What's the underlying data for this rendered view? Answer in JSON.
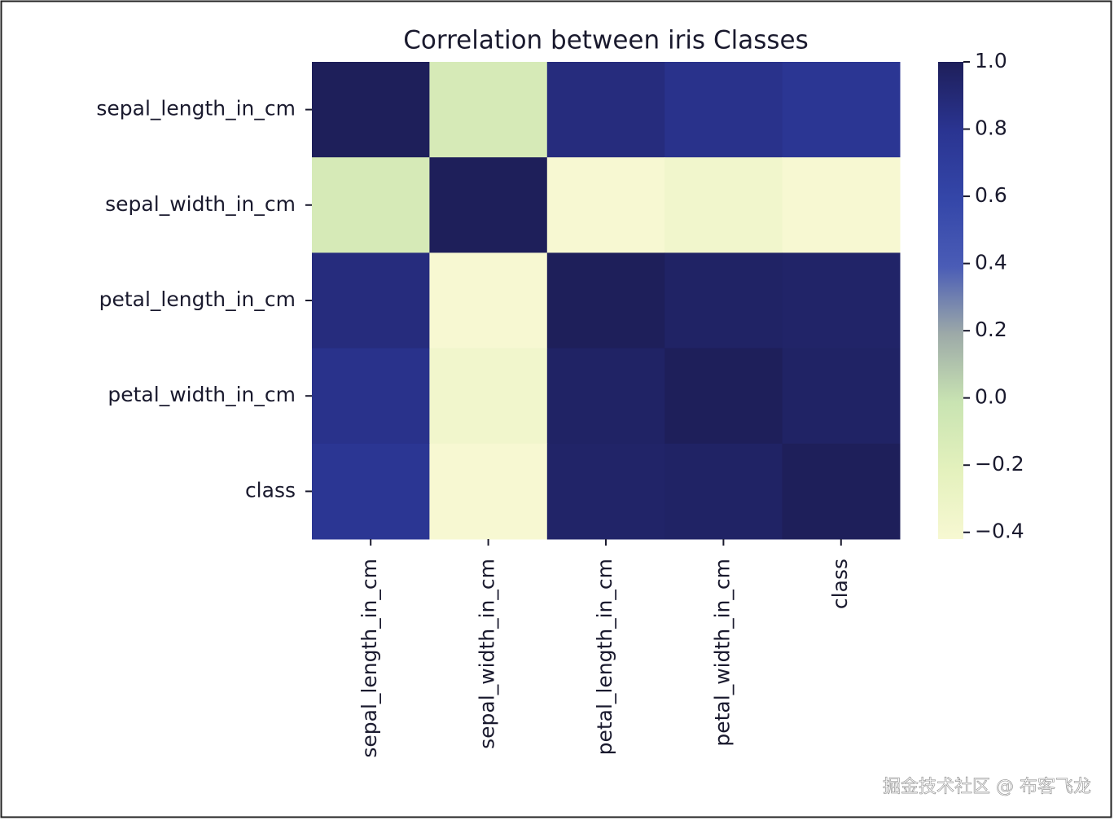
{
  "chart_data": {
    "type": "heatmap",
    "title": "Correlation between iris Classes",
    "categories": [
      "sepal_length_in_cm",
      "sepal_width_in_cm",
      "petal_length_in_cm",
      "petal_width_in_cm",
      "class"
    ],
    "z": [
      [
        1.0,
        -0.11,
        0.87,
        0.82,
        0.78
      ],
      [
        -0.11,
        1.0,
        -0.42,
        -0.36,
        -0.42
      ],
      [
        0.87,
        -0.42,
        1.0,
        0.96,
        0.95
      ],
      [
        0.82,
        -0.36,
        0.96,
        1.0,
        0.96
      ],
      [
        0.78,
        -0.42,
        0.95,
        0.96,
        1.0
      ]
    ],
    "zlim": [
      -0.42,
      1.0
    ],
    "zticks": [
      {
        "value": 1.0,
        "label": "1.0"
      },
      {
        "value": 0.8,
        "label": "0.8"
      },
      {
        "value": 0.6,
        "label": "0.6"
      },
      {
        "value": 0.4,
        "label": "0.4"
      },
      {
        "value": 0.2,
        "label": "0.2"
      },
      {
        "value": 0.0,
        "label": "0.0"
      },
      {
        "value": -0.2,
        "label": "−0.2"
      },
      {
        "value": -0.4,
        "label": "−0.4"
      }
    ],
    "colorscale": [
      "#f7f8d2",
      "#e4f1bd",
      "#c9e4b2",
      "#9daaa8",
      "#4a5cb6",
      "#3446a8",
      "#2a3491",
      "#1e1f5a"
    ]
  },
  "watermark": "掘金技术社区 @ 布客飞龙"
}
